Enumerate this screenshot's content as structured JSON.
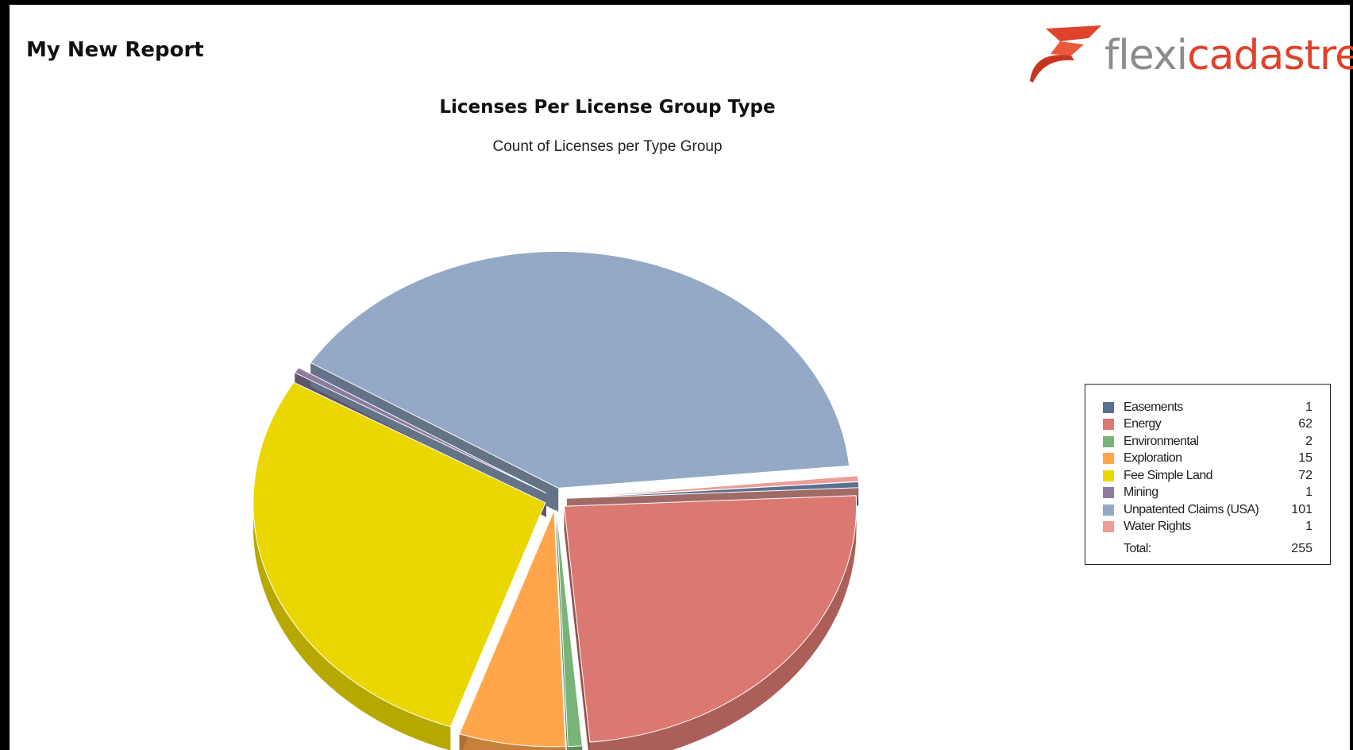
{
  "report": {
    "title": "My New Report"
  },
  "logo": {
    "text_part1": "flexi",
    "text_part2": "cadastre",
    "accent_color": "#e0422b",
    "gray_color": "#8a8c8f"
  },
  "chart_data": {
    "type": "pie",
    "title": "Licenses Per License Group Type",
    "subtitle": "Count of Licenses per Type Group",
    "style": "3d-exploded",
    "legend_position": "right",
    "series": [
      {
        "name": "Easements",
        "value": 1,
        "color": "#5a7090",
        "display_value": "1"
      },
      {
        "name": "Energy",
        "value": 62,
        "color": "#dc7872",
        "display_value": "62"
      },
      {
        "name": "Environmental",
        "value": 2,
        "color": "#78b478",
        "display_value": "2"
      },
      {
        "name": "Exploration",
        "value": 15,
        "color": "#ffa64c",
        "display_value": "15"
      },
      {
        "name": "Fee Simple Land",
        "value": 72,
        "color": "#ebd700",
        "display_value": "72"
      },
      {
        "name": "Mining",
        "value": 1,
        "color": "#8c7aa0",
        "display_value": "1"
      },
      {
        "name": "Unpatented Claims (USA)",
        "value": 101,
        "color": "#93a9c6",
        "display_value": "101"
      },
      {
        "name": "Water Rights",
        "value": 1,
        "color": "#eb9d96",
        "display_value": "1"
      }
    ],
    "total_label": "Total:",
    "total_value": "255"
  }
}
